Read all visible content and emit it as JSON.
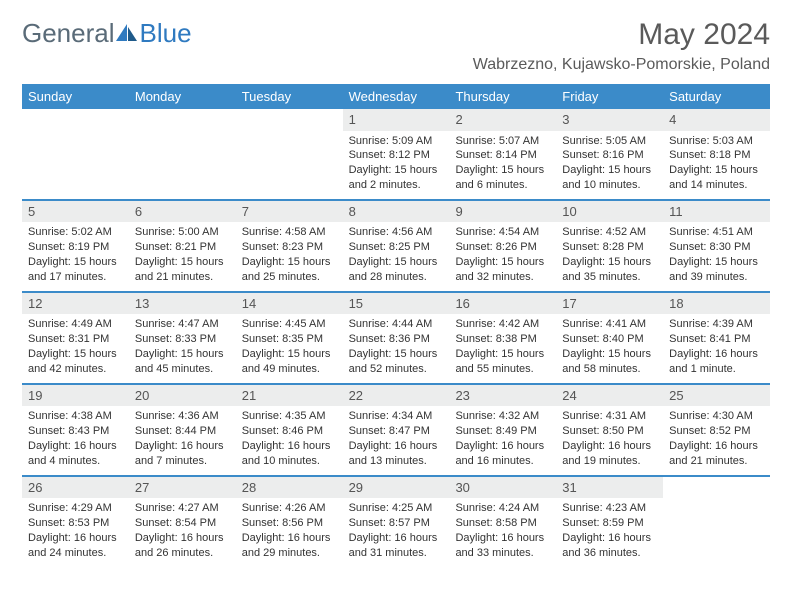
{
  "logo": {
    "text1": "General",
    "text2": "Blue"
  },
  "title": "May 2024",
  "location": "Wabrzezno, Kujawsko-Pomorskie, Poland",
  "colors": {
    "header_bg": "#3b8bc9",
    "header_fg": "#ffffff",
    "daynum_bg": "#eceded",
    "rule": "#3b8bc9",
    "logo_gray": "#5a6b78",
    "logo_blue": "#2f7ac0"
  },
  "day_names": [
    "Sunday",
    "Monday",
    "Tuesday",
    "Wednesday",
    "Thursday",
    "Friday",
    "Saturday"
  ],
  "weeks": [
    [
      {
        "n": "",
        "sr": "",
        "ss": "",
        "dl": ""
      },
      {
        "n": "",
        "sr": "",
        "ss": "",
        "dl": ""
      },
      {
        "n": "",
        "sr": "",
        "ss": "",
        "dl": ""
      },
      {
        "n": "1",
        "sr": "Sunrise: 5:09 AM",
        "ss": "Sunset: 8:12 PM",
        "dl": "Daylight: 15 hours and 2 minutes."
      },
      {
        "n": "2",
        "sr": "Sunrise: 5:07 AM",
        "ss": "Sunset: 8:14 PM",
        "dl": "Daylight: 15 hours and 6 minutes."
      },
      {
        "n": "3",
        "sr": "Sunrise: 5:05 AM",
        "ss": "Sunset: 8:16 PM",
        "dl": "Daylight: 15 hours and 10 minutes."
      },
      {
        "n": "4",
        "sr": "Sunrise: 5:03 AM",
        "ss": "Sunset: 8:18 PM",
        "dl": "Daylight: 15 hours and 14 minutes."
      }
    ],
    [
      {
        "n": "5",
        "sr": "Sunrise: 5:02 AM",
        "ss": "Sunset: 8:19 PM",
        "dl": "Daylight: 15 hours and 17 minutes."
      },
      {
        "n": "6",
        "sr": "Sunrise: 5:00 AM",
        "ss": "Sunset: 8:21 PM",
        "dl": "Daylight: 15 hours and 21 minutes."
      },
      {
        "n": "7",
        "sr": "Sunrise: 4:58 AM",
        "ss": "Sunset: 8:23 PM",
        "dl": "Daylight: 15 hours and 25 minutes."
      },
      {
        "n": "8",
        "sr": "Sunrise: 4:56 AM",
        "ss": "Sunset: 8:25 PM",
        "dl": "Daylight: 15 hours and 28 minutes."
      },
      {
        "n": "9",
        "sr": "Sunrise: 4:54 AM",
        "ss": "Sunset: 8:26 PM",
        "dl": "Daylight: 15 hours and 32 minutes."
      },
      {
        "n": "10",
        "sr": "Sunrise: 4:52 AM",
        "ss": "Sunset: 8:28 PM",
        "dl": "Daylight: 15 hours and 35 minutes."
      },
      {
        "n": "11",
        "sr": "Sunrise: 4:51 AM",
        "ss": "Sunset: 8:30 PM",
        "dl": "Daylight: 15 hours and 39 minutes."
      }
    ],
    [
      {
        "n": "12",
        "sr": "Sunrise: 4:49 AM",
        "ss": "Sunset: 8:31 PM",
        "dl": "Daylight: 15 hours and 42 minutes."
      },
      {
        "n": "13",
        "sr": "Sunrise: 4:47 AM",
        "ss": "Sunset: 8:33 PM",
        "dl": "Daylight: 15 hours and 45 minutes."
      },
      {
        "n": "14",
        "sr": "Sunrise: 4:45 AM",
        "ss": "Sunset: 8:35 PM",
        "dl": "Daylight: 15 hours and 49 minutes."
      },
      {
        "n": "15",
        "sr": "Sunrise: 4:44 AM",
        "ss": "Sunset: 8:36 PM",
        "dl": "Daylight: 15 hours and 52 minutes."
      },
      {
        "n": "16",
        "sr": "Sunrise: 4:42 AM",
        "ss": "Sunset: 8:38 PM",
        "dl": "Daylight: 15 hours and 55 minutes."
      },
      {
        "n": "17",
        "sr": "Sunrise: 4:41 AM",
        "ss": "Sunset: 8:40 PM",
        "dl": "Daylight: 15 hours and 58 minutes."
      },
      {
        "n": "18",
        "sr": "Sunrise: 4:39 AM",
        "ss": "Sunset: 8:41 PM",
        "dl": "Daylight: 16 hours and 1 minute."
      }
    ],
    [
      {
        "n": "19",
        "sr": "Sunrise: 4:38 AM",
        "ss": "Sunset: 8:43 PM",
        "dl": "Daylight: 16 hours and 4 minutes."
      },
      {
        "n": "20",
        "sr": "Sunrise: 4:36 AM",
        "ss": "Sunset: 8:44 PM",
        "dl": "Daylight: 16 hours and 7 minutes."
      },
      {
        "n": "21",
        "sr": "Sunrise: 4:35 AM",
        "ss": "Sunset: 8:46 PM",
        "dl": "Daylight: 16 hours and 10 minutes."
      },
      {
        "n": "22",
        "sr": "Sunrise: 4:34 AM",
        "ss": "Sunset: 8:47 PM",
        "dl": "Daylight: 16 hours and 13 minutes."
      },
      {
        "n": "23",
        "sr": "Sunrise: 4:32 AM",
        "ss": "Sunset: 8:49 PM",
        "dl": "Daylight: 16 hours and 16 minutes."
      },
      {
        "n": "24",
        "sr": "Sunrise: 4:31 AM",
        "ss": "Sunset: 8:50 PM",
        "dl": "Daylight: 16 hours and 19 minutes."
      },
      {
        "n": "25",
        "sr": "Sunrise: 4:30 AM",
        "ss": "Sunset: 8:52 PM",
        "dl": "Daylight: 16 hours and 21 minutes."
      }
    ],
    [
      {
        "n": "26",
        "sr": "Sunrise: 4:29 AM",
        "ss": "Sunset: 8:53 PM",
        "dl": "Daylight: 16 hours and 24 minutes."
      },
      {
        "n": "27",
        "sr": "Sunrise: 4:27 AM",
        "ss": "Sunset: 8:54 PM",
        "dl": "Daylight: 16 hours and 26 minutes."
      },
      {
        "n": "28",
        "sr": "Sunrise: 4:26 AM",
        "ss": "Sunset: 8:56 PM",
        "dl": "Daylight: 16 hours and 29 minutes."
      },
      {
        "n": "29",
        "sr": "Sunrise: 4:25 AM",
        "ss": "Sunset: 8:57 PM",
        "dl": "Daylight: 16 hours and 31 minutes."
      },
      {
        "n": "30",
        "sr": "Sunrise: 4:24 AM",
        "ss": "Sunset: 8:58 PM",
        "dl": "Daylight: 16 hours and 33 minutes."
      },
      {
        "n": "31",
        "sr": "Sunrise: 4:23 AM",
        "ss": "Sunset: 8:59 PM",
        "dl": "Daylight: 16 hours and 36 minutes."
      },
      {
        "n": "",
        "sr": "",
        "ss": "",
        "dl": ""
      }
    ]
  ]
}
